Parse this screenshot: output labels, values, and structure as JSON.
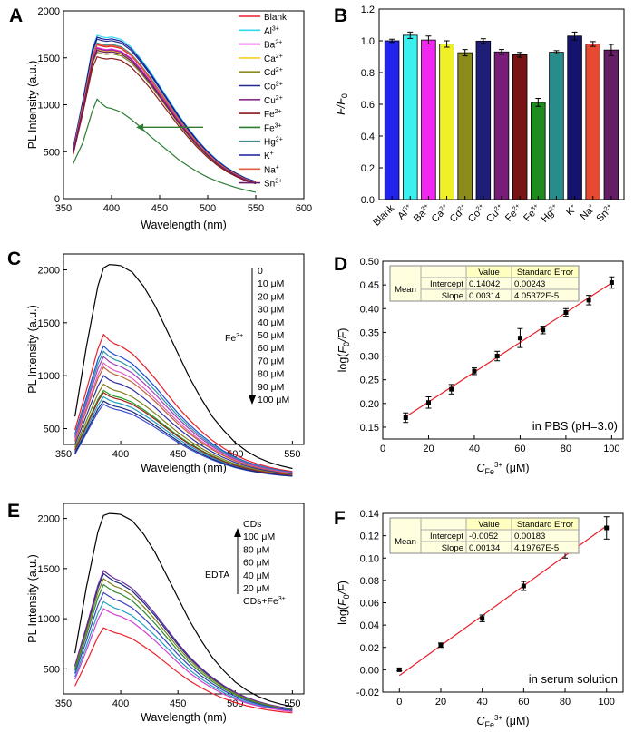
{
  "chart_data": [
    {
      "panel": "A",
      "type": "line",
      "xlabel": "Wavelength (nm)",
      "ylabel": "PL Intensity (a.u.)",
      "xlim": [
        350,
        600
      ],
      "ylim": [
        0,
        2000
      ],
      "xticks": [
        350,
        400,
        450,
        500,
        550,
        600
      ],
      "yticks": [
        0,
        500,
        1000,
        1500,
        2000
      ],
      "legend_position": "top-right",
      "x": [
        360,
        370,
        380,
        385,
        390,
        395,
        400,
        410,
        420,
        430,
        440,
        450,
        460,
        470,
        480,
        490,
        500,
        510,
        520,
        530,
        540,
        550
      ],
      "profile": [
        0.31,
        0.6,
        0.92,
        1.0,
        0.99,
        0.985,
        0.99,
        0.975,
        0.93,
        0.86,
        0.78,
        0.69,
        0.6,
        0.51,
        0.43,
        0.355,
        0.29,
        0.235,
        0.19,
        0.155,
        0.125,
        0.105
      ],
      "fe3_profile": [
        0.35,
        0.56,
        0.88,
        1.0,
        0.95,
        0.915,
        0.905,
        0.87,
        0.8,
        0.72,
        0.63,
        0.55,
        0.47,
        0.39,
        0.325,
        0.265,
        0.215,
        0.175,
        0.14,
        0.11,
        0.085,
        0.065
      ],
      "series": [
        {
          "name": "Blank",
          "peak": 1640,
          "color": "#e8202a"
        },
        {
          "name": "Al3+",
          "sup": "3+",
          "base": "Al",
          "peak": 1740,
          "color": "#33d9ee"
        },
        {
          "name": "Ba2+",
          "sup": "2+",
          "base": "Ba",
          "peak": 1610,
          "color": "#e625e6"
        },
        {
          "name": "Ca2+",
          "sup": "2+",
          "base": "Ca",
          "peak": 1590,
          "color": "#f5d020"
        },
        {
          "name": "Cd2+",
          "sup": "2+",
          "base": "Cd",
          "peak": 1560,
          "color": "#8b8b22"
        },
        {
          "name": "Co2+",
          "sup": "2+",
          "base": "Co",
          "peak": 1700,
          "color": "#1f2a8c"
        },
        {
          "name": "Cu2+",
          "sup": "2+",
          "base": "Cu",
          "peak": 1600,
          "color": "#8a2c8a"
        },
        {
          "name": "Fe2+",
          "sup": "2+",
          "base": "Fe",
          "peak": 1510,
          "color": "#8b1a1a"
        },
        {
          "name": "Fe3+",
          "sup": "3+",
          "base": "Fe",
          "peak": 1060,
          "color": "#2e7d32"
        },
        {
          "name": "Hg2+",
          "sup": "2+",
          "base": "Hg",
          "peak": 1660,
          "color": "#3a8f86"
        },
        {
          "name": "K+",
          "sup": "+",
          "base": "K",
          "peak": 1720,
          "color": "#1a1aa0"
        },
        {
          "name": "Na+",
          "sup": "+",
          "base": "Na",
          "peak": 1650,
          "color": "#e06040"
        },
        {
          "name": "Sn2+",
          "sup": "2+",
          "base": "Sn",
          "peak": 1580,
          "color": "#6a1b6a"
        }
      ],
      "arrow_from_x": 450,
      "arrow_to_x": 435,
      "arrow_y": 760
    },
    {
      "panel": "B",
      "type": "bar",
      "ylabel": "F/F0",
      "ylim": [
        0,
        1.2
      ],
      "yticks": [
        0.0,
        0.2,
        0.4,
        0.6,
        0.8,
        1.0,
        1.2
      ],
      "categories": [
        "Blank",
        "Al3+",
        "Ba2+",
        "Ca2+",
        "Cd2+",
        "Co2+",
        "Cu2+",
        "Fe2+",
        "Fe3+",
        "Hg2+",
        "K+",
        "Na+",
        "Sn2+"
      ],
      "tick_base": [
        "Blank",
        "Al",
        "Ba",
        "Ca",
        "Cd",
        "Co",
        "Cu",
        "Fe",
        "Fe",
        "Hg",
        "K",
        "Na",
        "Sn"
      ],
      "tick_sup": [
        "",
        "3+",
        "2+",
        "2+",
        "2+",
        "2+",
        "2+",
        "2+",
        "3+",
        "2+",
        "+",
        "+",
        "2+"
      ],
      "values": [
        1.0,
        1.035,
        1.005,
        0.98,
        0.925,
        0.998,
        0.93,
        0.912,
        0.612,
        0.928,
        1.03,
        0.98,
        0.942
      ],
      "errors": [
        0.01,
        0.02,
        0.025,
        0.02,
        0.02,
        0.015,
        0.015,
        0.015,
        0.025,
        0.01,
        0.025,
        0.015,
        0.035
      ],
      "colors": [
        "#2323f0",
        "#3cf0f0",
        "#f028f0",
        "#f0f028",
        "#8c8c1e",
        "#1e1e78",
        "#781e78",
        "#781414",
        "#1e8c1e",
        "#288c8c",
        "#14146e",
        "#e64b32",
        "#641e64"
      ]
    },
    {
      "panel": "C",
      "type": "line",
      "xlabel": "Wavelength (nm)",
      "ylabel": "PL Intensity (a.u.)",
      "xlim": [
        350,
        560
      ],
      "ylim": [
        350,
        2150
      ],
      "xticks": [
        350,
        400,
        450,
        500,
        550
      ],
      "yticks": [
        500,
        1000,
        1500,
        2000
      ],
      "x": [
        360,
        370,
        380,
        385,
        390,
        395,
        400,
        410,
        420,
        430,
        440,
        450,
        460,
        470,
        480,
        490,
        500,
        510,
        520,
        530,
        540,
        550
      ],
      "profile_black": [
        0.3,
        0.62,
        0.9,
        0.985,
        1.0,
        0.998,
        0.995,
        0.965,
        0.9,
        0.81,
        0.7,
        0.59,
        0.48,
        0.385,
        0.3,
        0.235,
        0.18,
        0.14,
        0.11,
        0.088,
        0.072,
        0.06
      ],
      "profile": [
        0.35,
        0.62,
        0.9,
        1.0,
        0.96,
        0.935,
        0.92,
        0.87,
        0.79,
        0.7,
        0.6,
        0.505,
        0.42,
        0.345,
        0.28,
        0.225,
        0.18,
        0.145,
        0.118,
        0.097,
        0.08,
        0.068
      ],
      "series": [
        {
          "name": "0",
          "peak": 2050,
          "color": "#000000"
        },
        {
          "name": "10 μM",
          "peak": 1390,
          "color": "#e8202a"
        },
        {
          "name": "20 μM",
          "peak": 1280,
          "color": "#1f4fd0"
        },
        {
          "name": "30 μM",
          "peak": 1230,
          "color": "#2e9aa0"
        },
        {
          "name": "40 μM",
          "peak": 1180,
          "color": "#a040c0"
        },
        {
          "name": "50 μM",
          "peak": 1120,
          "color": "#e060c0"
        },
        {
          "name": "60 μM",
          "peak": 1080,
          "color": "#c06030"
        },
        {
          "name": "70 μM",
          "peak": 1000,
          "color": "#3030a0"
        },
        {
          "name": "80 μM",
          "peak": 920,
          "color": "#808020"
        },
        {
          "name": "90 μM",
          "peak": 840,
          "color": "#a02020"
        },
        {
          "name": "100 μM",
          "peak": 760,
          "color": "#1a2a7a"
        }
      ],
      "series_extra": [
        {
          "peak": 860,
          "color": "#20a020"
        },
        {
          "peak": 800,
          "color": "#20a0c0"
        },
        {
          "peak": 730,
          "color": "#4050d0"
        }
      ],
      "annotation_label": "Fe",
      "annotation_sup": "3+"
    },
    {
      "panel": "D",
      "type": "scatter",
      "xlabel_base": "C",
      "xlabel_sub": "Fe",
      "xlabel_sup": "3+",
      "xlabel_unit": " (μM)",
      "ylabel_pre": "log(",
      "ylabel_f": "F",
      "ylabel_sub": "0",
      "ylabel_slash": "/",
      "ylabel_post": ")",
      "xlim": [
        0,
        105
      ],
      "ylim": [
        0.125,
        0.5
      ],
      "xticks": [
        0,
        20,
        40,
        60,
        80,
        100
      ],
      "yticks": [
        0.15,
        0.2,
        0.25,
        0.3,
        0.35,
        0.4,
        0.45,
        0.5
      ],
      "x": [
        10,
        20,
        30,
        40,
        50,
        60,
        70,
        80,
        90,
        100
      ],
      "y": [
        0.17,
        0.202,
        0.23,
        0.268,
        0.3,
        0.338,
        0.355,
        0.392,
        0.418,
        0.455
      ],
      "errors": [
        0.01,
        0.012,
        0.01,
        0.007,
        0.01,
        0.02,
        0.008,
        0.008,
        0.01,
        0.012
      ],
      "fit": {
        "intercept": 0.14042,
        "slope": 0.00314
      },
      "table": {
        "col1": "Value",
        "col2": "Standard Error",
        "row_label": "Mean",
        "rows": [
          [
            "Intercept",
            "0.14042",
            "0.00243"
          ],
          [
            "Slope",
            "0.00314",
            "4.05372E-5"
          ]
        ]
      },
      "inset_text": "in PBS (pH=3.0)"
    },
    {
      "panel": "E",
      "type": "line",
      "xlabel": "Wavelength (nm)",
      "ylabel": "PL Intensity (a.u.)",
      "xlim": [
        350,
        560
      ],
      "ylim": [
        250,
        2150
      ],
      "xticks": [
        350,
        400,
        450,
        500,
        550
      ],
      "yticks": [
        500,
        1000,
        1500,
        2000
      ],
      "x": [
        360,
        370,
        380,
        385,
        390,
        395,
        400,
        410,
        420,
        430,
        440,
        450,
        460,
        470,
        480,
        490,
        500,
        510,
        520,
        530,
        540,
        550
      ],
      "profile_black": [
        0.32,
        0.64,
        0.91,
        0.99,
        1.0,
        0.998,
        0.995,
        0.965,
        0.9,
        0.81,
        0.7,
        0.59,
        0.48,
        0.385,
        0.3,
        0.235,
        0.18,
        0.14,
        0.11,
        0.088,
        0.072,
        0.06
      ],
      "profile": [
        0.36,
        0.62,
        0.9,
        1.0,
        0.97,
        0.945,
        0.93,
        0.88,
        0.8,
        0.71,
        0.61,
        0.51,
        0.42,
        0.345,
        0.28,
        0.225,
        0.18,
        0.145,
        0.118,
        0.097,
        0.08,
        0.068
      ],
      "series": [
        {
          "name": "CDs",
          "peak": 2050,
          "color": "#000000"
        },
        {
          "name": "100 μM",
          "peak": 1480,
          "color": "#6a2aa0"
        },
        {
          "name": "80 μM",
          "peak": 1400,
          "color": "#808020"
        },
        {
          "name": "60 μM",
          "peak": 1340,
          "color": "#2a8a2a"
        },
        {
          "name": "40 μM",
          "peak": 1260,
          "color": "#3a40c0"
        },
        {
          "name": "20 μM",
          "peak": 1100,
          "color": "#d040d0"
        },
        {
          "name": "CDs+Fe3+",
          "peak": 910,
          "color": "#e8202a"
        }
      ],
      "series_extra": [
        {
          "peak": 1450,
          "color": "#1a2a7a"
        },
        {
          "peak": 1170,
          "color": "#20a0c0"
        }
      ],
      "annotation_label": "EDTA",
      "last_base": "CDs+Fe",
      "last_sup": "3+"
    },
    {
      "panel": "F",
      "type": "scatter",
      "xlabel_base": "C",
      "xlabel_sub": "Fe",
      "xlabel_sup": "3+",
      "xlabel_unit": " (μM)",
      "ylabel_pre": "log(",
      "ylabel_f": "F",
      "ylabel_sub": "0",
      "ylabel_slash": "/",
      "ylabel_post": ")",
      "xlim": [
        -8,
        108
      ],
      "ylim": [
        -0.02,
        0.14
      ],
      "xticks": [
        0,
        20,
        40,
        60,
        80,
        100
      ],
      "yticks": [
        -0.02,
        0.0,
        0.02,
        0.04,
        0.06,
        0.08,
        0.1,
        0.12,
        0.14
      ],
      "x": [
        0,
        20,
        40,
        60,
        80,
        100
      ],
      "y": [
        0.0,
        0.022,
        0.046,
        0.075,
        0.106,
        0.127
      ],
      "errors": [
        0.001,
        0.002,
        0.003,
        0.004,
        0.006,
        0.01
      ],
      "fit": {
        "intercept": -0.0052,
        "slope": 0.00134
      },
      "table": {
        "col1": "Value",
        "col2": "Standard Error",
        "row_label": "Mean",
        "rows": [
          [
            "Intercept",
            "-0.0052",
            "0.00183"
          ],
          [
            "Slope",
            "0.00134",
            "4.19767E-5"
          ]
        ]
      },
      "inset_text": "in serum solution"
    }
  ]
}
